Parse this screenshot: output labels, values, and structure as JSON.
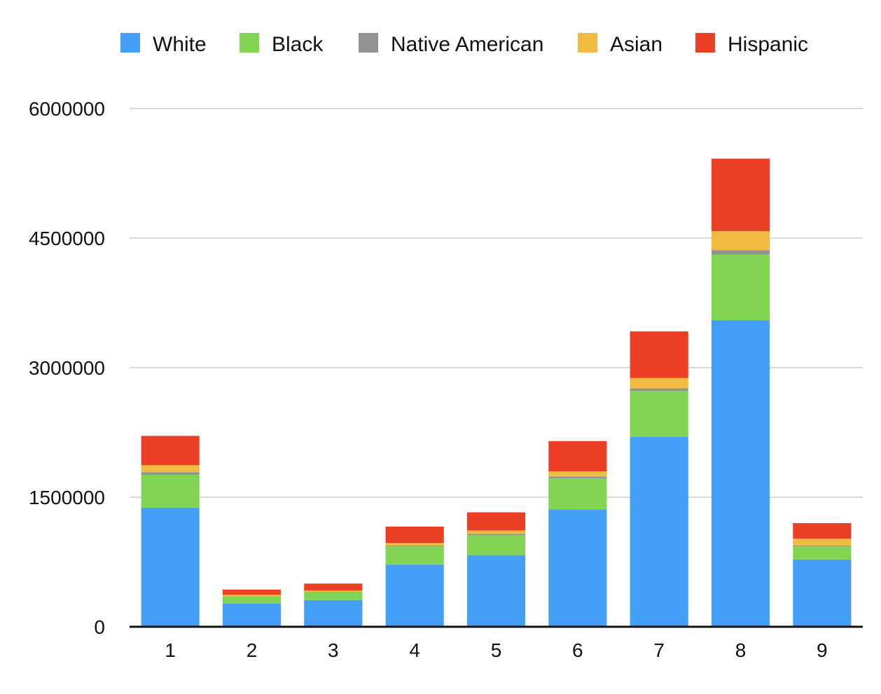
{
  "chart_data": {
    "type": "bar",
    "stacked": true,
    "categories": [
      "1",
      "2",
      "3",
      "4",
      "5",
      "6",
      "7",
      "8",
      "9"
    ],
    "series": [
      {
        "name": "White",
        "color": "#44a0f6",
        "values": [
          1380000,
          270000,
          310000,
          720000,
          830000,
          1360000,
          2200000,
          3550000,
          780000
        ]
      },
      {
        "name": "Black",
        "color": "#82d552",
        "values": [
          380000,
          80000,
          90000,
          210000,
          230000,
          360000,
          530000,
          760000,
          150000
        ]
      },
      {
        "name": "Native American",
        "color": "#929292",
        "values": [
          30000,
          5000,
          5000,
          10000,
          15000,
          20000,
          30000,
          50000,
          10000
        ]
      },
      {
        "name": "Asian",
        "color": "#f0bb40",
        "values": [
          80000,
          15000,
          15000,
          30000,
          40000,
          60000,
          120000,
          220000,
          80000
        ]
      },
      {
        "name": "Hispanic",
        "color": "#eb4025",
        "values": [
          340000,
          60000,
          80000,
          190000,
          210000,
          350000,
          540000,
          840000,
          180000
        ]
      }
    ],
    "y_ticks": [
      "0",
      "1500000",
      "3000000",
      "4500000",
      "6000000"
    ],
    "ylim": [
      0,
      6000000
    ],
    "xlabel": "",
    "ylabel": "",
    "grid": true,
    "legend_position": "top"
  }
}
